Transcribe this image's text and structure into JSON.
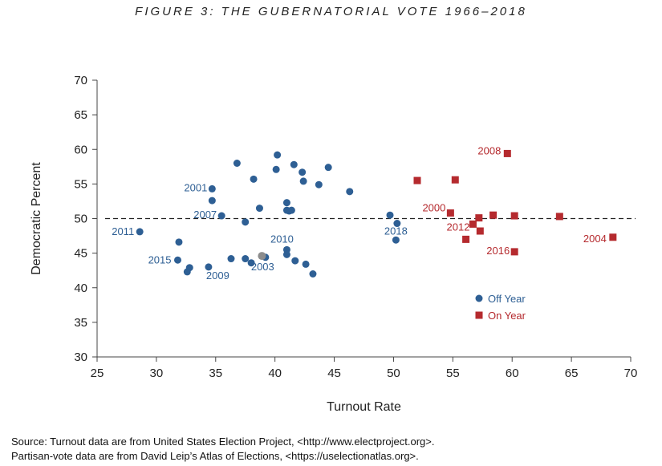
{
  "figure_title": "FIGURE 3: THE GUBERNATORIAL VOTE 1966–2018",
  "source_lines": [
    "Source: Turnout data are from United States Election Project, <http://www.electproject.org>.",
    "Partisan-vote data are from David Leip’s Atlas of Elections, <https://uselectionatlas.org>."
  ],
  "chart_data": {
    "type": "scatter",
    "xlabel": "Turnout Rate",
    "ylabel": "Democratic Percent",
    "xlim": [
      25,
      70
    ],
    "ylim": [
      30,
      70
    ],
    "xticks": [
      25,
      30,
      35,
      40,
      45,
      50,
      55,
      60,
      65,
      70
    ],
    "yticks": [
      30,
      35,
      40,
      45,
      50,
      55,
      60,
      65,
      70
    ],
    "reference_line": {
      "y": 50,
      "style": "dashed"
    },
    "legend": {
      "placement": "lower-right"
    },
    "series": [
      {
        "name": "Off Year",
        "color": "#2e5f94",
        "marker": "circle",
        "points": [
          {
            "x": 28.6,
            "y": 48.1,
            "label": "2011"
          },
          {
            "x": 31.9,
            "y": 46.6
          },
          {
            "x": 31.8,
            "y": 44.0,
            "label": "2015"
          },
          {
            "x": 32.8,
            "y": 42.9
          },
          {
            "x": 32.6,
            "y": 42.3
          },
          {
            "x": 34.4,
            "y": 43.0,
            "label": "2009"
          },
          {
            "x": 34.7,
            "y": 54.3,
            "label": "2001"
          },
          {
            "x": 34.7,
            "y": 52.6
          },
          {
            "x": 35.5,
            "y": 50.4,
            "label": "2007"
          },
          {
            "x": 36.3,
            "y": 44.2
          },
          {
            "x": 36.8,
            "y": 58.0
          },
          {
            "x": 37.5,
            "y": 44.2
          },
          {
            "x": 37.5,
            "y": 49.5
          },
          {
            "x": 38.0,
            "y": 43.6
          },
          {
            "x": 38.2,
            "y": 55.7
          },
          {
            "x": 38.7,
            "y": 51.5
          },
          {
            "x": 39.2,
            "y": 44.4,
            "label": "2003"
          },
          {
            "x": 40.1,
            "y": 57.1
          },
          {
            "x": 40.2,
            "y": 59.2
          },
          {
            "x": 41.0,
            "y": 52.3
          },
          {
            "x": 41.0,
            "y": 51.2
          },
          {
            "x": 41.2,
            "y": 51.1
          },
          {
            "x": 41.4,
            "y": 51.2
          },
          {
            "x": 41.0,
            "y": 45.5,
            "label": "2010"
          },
          {
            "x": 41.0,
            "y": 44.8
          },
          {
            "x": 41.6,
            "y": 57.8
          },
          {
            "x": 41.7,
            "y": 43.9
          },
          {
            "x": 42.3,
            "y": 56.7
          },
          {
            "x": 42.4,
            "y": 55.4
          },
          {
            "x": 42.6,
            "y": 43.4
          },
          {
            "x": 43.2,
            "y": 42.0
          },
          {
            "x": 43.7,
            "y": 54.9
          },
          {
            "x": 44.5,
            "y": 57.4
          },
          {
            "x": 46.3,
            "y": 53.9
          },
          {
            "x": 49.7,
            "y": 50.5
          },
          {
            "x": 50.3,
            "y": 49.3,
            "label": "2018"
          },
          {
            "x": 50.2,
            "y": 46.9
          }
        ]
      },
      {
        "name": "On Year",
        "color": "#b52a2e",
        "marker": "square",
        "points": [
          {
            "x": 52.0,
            "y": 55.5
          },
          {
            "x": 54.8,
            "y": 50.8,
            "label": "2000"
          },
          {
            "x": 55.2,
            "y": 55.6
          },
          {
            "x": 56.1,
            "y": 47.0
          },
          {
            "x": 56.7,
            "y": 49.2,
            "label": "2012"
          },
          {
            "x": 57.2,
            "y": 50.1
          },
          {
            "x": 57.3,
            "y": 48.2
          },
          {
            "x": 58.4,
            "y": 50.5
          },
          {
            "x": 59.6,
            "y": 59.4,
            "label": "2008"
          },
          {
            "x": 60.2,
            "y": 50.4
          },
          {
            "x": 60.2,
            "y": 45.2,
            "label": "2016"
          },
          {
            "x": 64.0,
            "y": 50.3
          },
          {
            "x": 68.5,
            "y": 47.3,
            "label": "2004"
          }
        ]
      }
    ],
    "highlight_points": [
      {
        "x": 38.9,
        "y": 44.6,
        "color": "#8c8c8c"
      }
    ]
  }
}
